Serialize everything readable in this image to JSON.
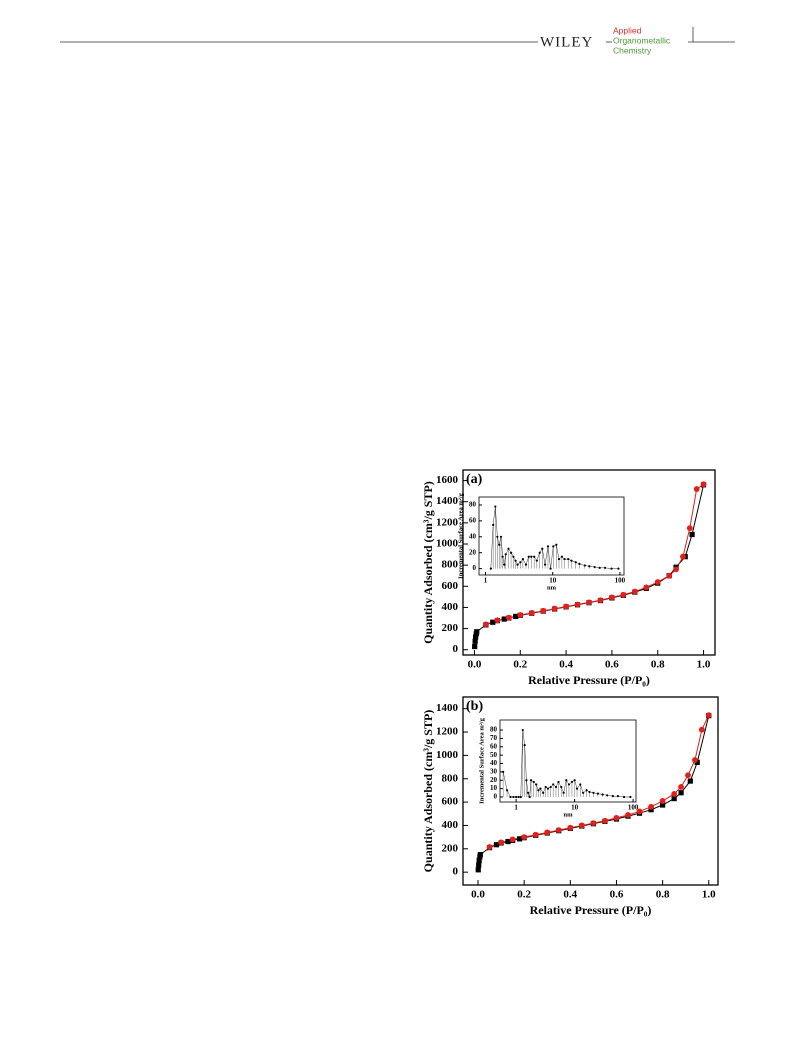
{
  "header": {
    "publisher": "WILEY",
    "journal": [
      "Applied",
      "Organometallic",
      "Chemistry"
    ]
  },
  "chart_data": [
    {
      "type": "line",
      "panel_label": "(a)",
      "xlabel": "Relative Pressure (P/P₀)",
      "ylabel": "Quantity Adsorbed (cm³/g STP)",
      "xlim": [
        -0.05,
        1.05
      ],
      "ylim": [
        -50,
        1700
      ],
      "xticks": [
        {
          "value": 0,
          "label": "0.0"
        },
        {
          "value": 0.2,
          "label": "0.2"
        },
        {
          "value": 0.4,
          "label": "0.4"
        },
        {
          "value": 0.6,
          "label": "0.6"
        },
        {
          "value": 0.8,
          "label": "0.8"
        },
        {
          "value": 1,
          "label": "1.0"
        }
      ],
      "yticks": [
        0,
        200,
        400,
        600,
        800,
        1000,
        1200,
        1400,
        1600
      ],
      "series": [
        {
          "color": "#000000",
          "marker": "square",
          "x": [
            0.001,
            0.003,
            0.005,
            0.008,
            0.01,
            0.05,
            0.08,
            0.1,
            0.13,
            0.15,
            0.18,
            0.2,
            0.25,
            0.3,
            0.35,
            0.4,
            0.45,
            0.5,
            0.55,
            0.6,
            0.65,
            0.7,
            0.75,
            0.8,
            0.85,
            0.88,
            0.92,
            0.95,
            1.0
          ],
          "values": [
            30,
            80,
            120,
            150,
            170,
            235,
            260,
            275,
            290,
            300,
            315,
            325,
            345,
            365,
            385,
            405,
            425,
            445,
            465,
            490,
            515,
            545,
            580,
            630,
            700,
            780,
            880,
            1090,
            1560
          ]
        },
        {
          "color": "#e0201b",
          "marker": "circle",
          "x": [
            0.05,
            0.1,
            0.15,
            0.2,
            0.25,
            0.3,
            0.35,
            0.4,
            0.45,
            0.5,
            0.55,
            0.6,
            0.65,
            0.7,
            0.75,
            0.8,
            0.85,
            0.88,
            0.91,
            0.94,
            0.97,
            1.0
          ],
          "values": [
            240,
            278,
            303,
            328,
            348,
            368,
            388,
            408,
            428,
            448,
            468,
            495,
            520,
            550,
            590,
            640,
            700,
            760,
            880,
            1150,
            1520,
            1565
          ]
        }
      ]
    },
    {
      "type": "stem",
      "xlabel": "nm",
      "ylabel": "Incremental Surface Area m²/g",
      "log_x": true,
      "color": "#000000",
      "xlim": [
        0.8,
        115
      ],
      "ylim": [
        -8,
        90
      ],
      "xticks": [
        1,
        10,
        100
      ],
      "yticks": [
        0,
        20,
        40,
        60,
        80
      ],
      "x": [
        1.2,
        1.3,
        1.4,
        1.5,
        1.6,
        1.7,
        1.8,
        1.9,
        2.0,
        2.2,
        2.4,
        2.6,
        2.8,
        3.0,
        3.3,
        3.6,
        4,
        4.4,
        4.8,
        5.3,
        5.8,
        6.4,
        7,
        7.7,
        8.5,
        9.3,
        10.2,
        11.3,
        12.4,
        13.7,
        15,
        17,
        19,
        22,
        25,
        30,
        35,
        42,
        50,
        60,
        75,
        95
      ],
      "values": [
        0,
        55,
        78,
        40,
        30,
        40,
        15,
        5,
        18,
        25,
        20,
        15,
        10,
        5,
        8,
        12,
        5,
        15,
        15,
        15,
        10,
        20,
        25,
        5,
        28,
        0,
        28,
        30,
        12,
        15,
        12,
        12,
        10,
        8,
        6,
        4,
        3,
        2,
        1,
        1,
        0,
        0
      ]
    },
    {
      "type": "line",
      "panel_label": "(b)",
      "xlabel": "Relative Pressure (P/P₀)",
      "ylabel": "Quantity Adsorbed (cm³/g STP)",
      "xlim": [
        -0.065,
        1.04
      ],
      "ylim": [
        -110,
        1500
      ],
      "xticks": [
        {
          "value": 0,
          "label": "0.0"
        },
        {
          "value": 0.2,
          "label": "0.2"
        },
        {
          "value": 0.4,
          "label": "0.4"
        },
        {
          "value": 0.6,
          "label": "0.6"
        },
        {
          "value": 0.8,
          "label": "0.8"
        },
        {
          "value": 1,
          "label": "1.0"
        }
      ],
      "yticks": [
        0,
        200,
        400,
        600,
        800,
        1000,
        1200,
        1400
      ],
      "series": [
        {
          "color": "#000000",
          "marker": "square",
          "x": [
            0.001,
            0.003,
            0.005,
            0.008,
            0.01,
            0.05,
            0.08,
            0.1,
            0.13,
            0.15,
            0.18,
            0.2,
            0.25,
            0.3,
            0.35,
            0.4,
            0.45,
            0.5,
            0.55,
            0.6,
            0.65,
            0.7,
            0.75,
            0.8,
            0.85,
            0.88,
            0.92,
            0.95,
            1.0
          ],
          "values": [
            20,
            60,
            100,
            130,
            150,
            210,
            235,
            250,
            262,
            272,
            285,
            295,
            315,
            335,
            355,
            375,
            395,
            415,
            435,
            455,
            480,
            505,
            535,
            575,
            630,
            680,
            780,
            940,
            1340
          ]
        },
        {
          "color": "#e0201b",
          "marker": "circle",
          "x": [
            0.05,
            0.1,
            0.15,
            0.2,
            0.25,
            0.3,
            0.35,
            0.4,
            0.45,
            0.5,
            0.55,
            0.6,
            0.65,
            0.7,
            0.75,
            0.8,
            0.85,
            0.88,
            0.91,
            0.94,
            0.97,
            1.0
          ],
          "values": [
            215,
            255,
            280,
            300,
            320,
            340,
            360,
            380,
            400,
            420,
            440,
            465,
            490,
            520,
            560,
            610,
            670,
            730,
            830,
            960,
            1220,
            1345
          ]
        }
      ]
    },
    {
      "type": "stem",
      "xlabel": "nm",
      "ylabel": "Incremental Surface Area m²/g",
      "log_x": true,
      "color": "#000000",
      "xlim": [
        0.53,
        112
      ],
      "ylim": [
        -6,
        92
      ],
      "xticks": [
        1,
        10,
        100
      ],
      "yticks": [
        0,
        10,
        20,
        30,
        40,
        50,
        60,
        70,
        80
      ],
      "x": [
        0.6,
        0.7,
        0.8,
        0.9,
        1.0,
        1.1,
        1.2,
        1.3,
        1.4,
        1.5,
        1.6,
        1.7,
        1.8,
        2.0,
        2.2,
        2.4,
        2.6,
        2.9,
        3.2,
        3.5,
        3.9,
        4.3,
        4.8,
        5.3,
        5.9,
        6.5,
        7.2,
        8,
        9,
        10,
        11,
        12.5,
        14,
        16,
        18,
        21,
        25,
        30,
        36,
        45,
        55,
        70,
        90
      ],
      "values": [
        30,
        8,
        0,
        0,
        0,
        0,
        0,
        80,
        62,
        20,
        5,
        0,
        20,
        18,
        15,
        8,
        10,
        5,
        12,
        10,
        12,
        15,
        12,
        18,
        12,
        5,
        20,
        15,
        18,
        20,
        10,
        15,
        5,
        8,
        6,
        5,
        4,
        3,
        2,
        1,
        1,
        0,
        0
      ]
    }
  ]
}
